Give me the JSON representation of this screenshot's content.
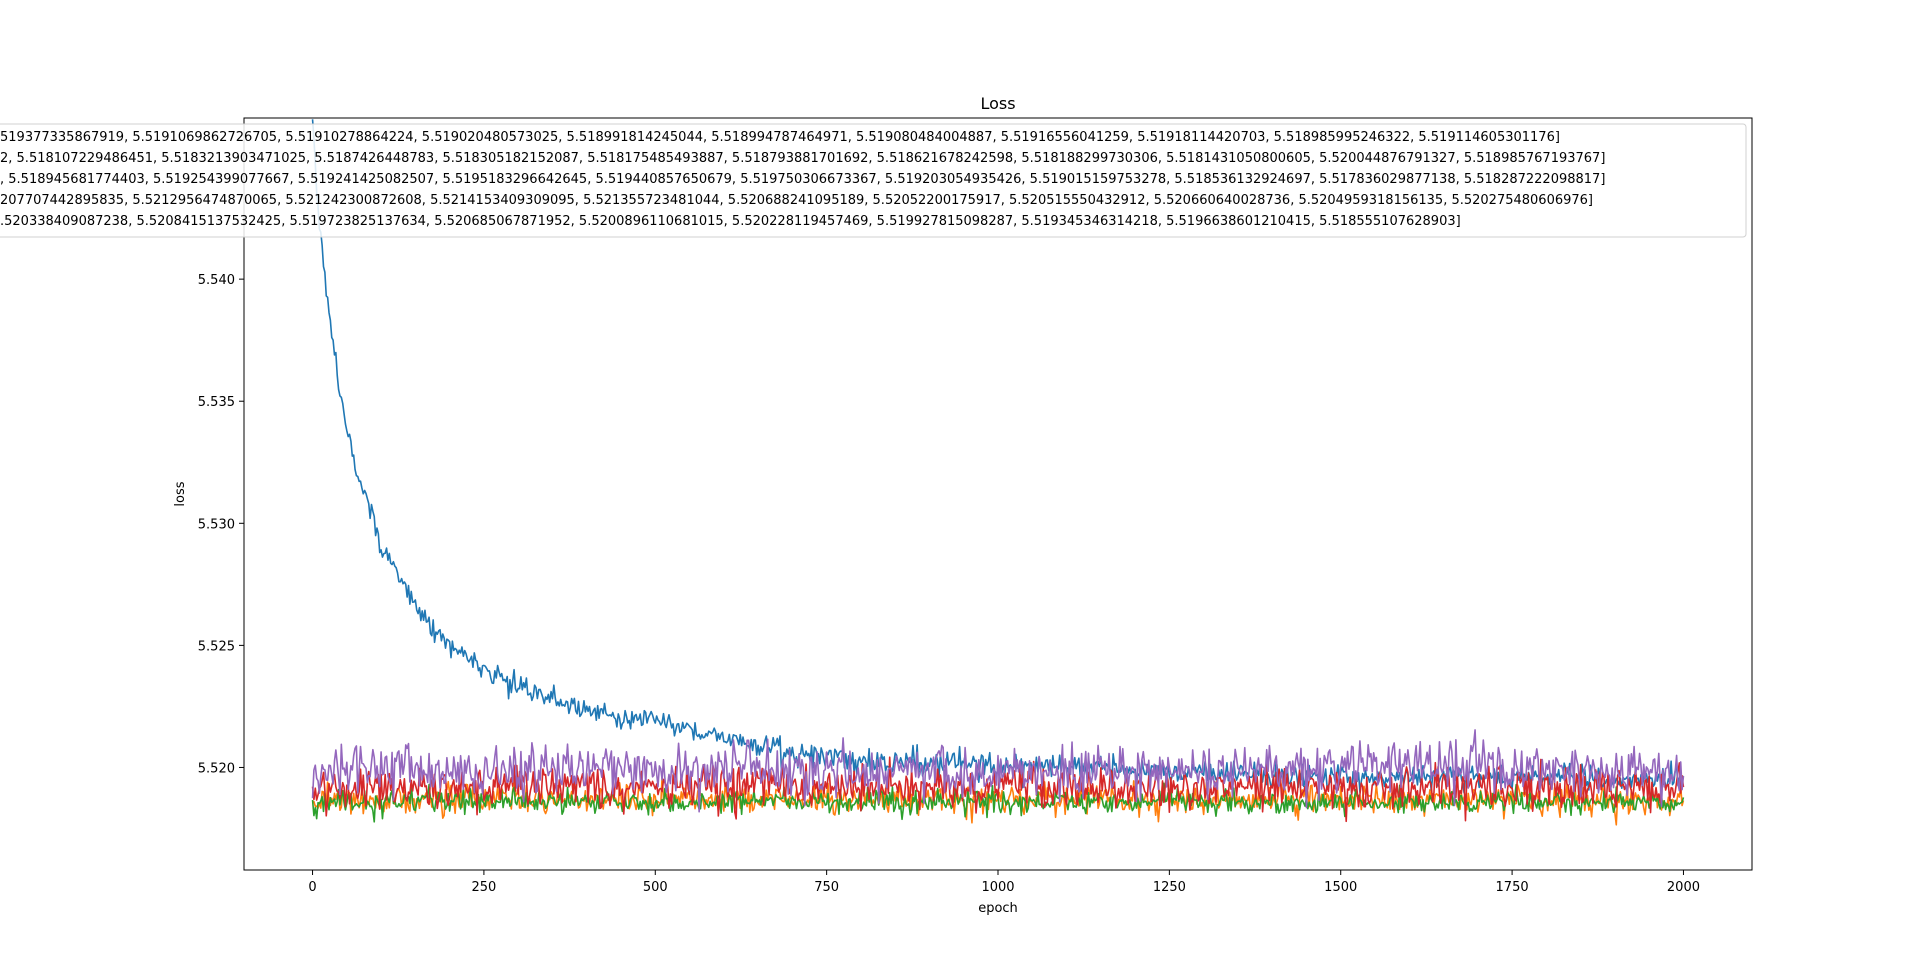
{
  "chart_data": {
    "type": "line",
    "title": "Loss",
    "xlabel": "epoch",
    "ylabel": "loss",
    "xlim": [
      -100,
      2100
    ],
    "ylim": [
      5.5158,
      5.5466
    ],
    "x_ticks": [
      0,
      250,
      500,
      750,
      1000,
      1250,
      1500,
      1750,
      2000
    ],
    "x_tick_labels": [
      "0",
      "250",
      "500",
      "750",
      "1000",
      "1250",
      "1500",
      "1750",
      "2000"
    ],
    "y_ticks": [
      5.52,
      5.525,
      5.53,
      5.535,
      5.54
    ],
    "y_tick_labels": [
      "5.520",
      "5.525",
      "5.530",
      "5.535",
      "5.540"
    ],
    "grid": false,
    "legend": {
      "placement": "top-right",
      "entries": [
        "519377335867919, 5.5191069862726705, 5.51910278864224, 5.519020480573025, 5.518991814245044, 5.518994787464971, 5.519080484004887, 5.51916556041259, 5.51918114420703, 5.518985995246322, 5.519114605301176]",
        "2, 5.518107229486451, 5.5183213903471025, 5.5187426448783, 5.518305182152087, 5.518175485493887, 5.518793881701692, 5.518621678242598, 5.518188299730306, 5.5181431050800605, 5.520044876791327, 5.518985767193767]",
        ", 5.518945681774403, 5.519254399077667, 5.519241425082507, 5.5195183296642645, 5.519440857650679, 5.519750306673367, 5.519203054935426, 5.519015159753278, 5.518536132924697, 5.517836029877138, 5.518287222098817]",
        "207707442895835, 5.5212956474870065, 5.521242300872608, 5.5214153409309095, 5.521355723481044, 5.520688241095189, 5.52052200175917, 5.520515550432912, 5.520660640028736, 5.5204959318156135, 5.520275480606976]",
        ".520338409087238, 5.5208415137532425, 5.519723825137634, 5.520685067871952, 5.5200896110681015, 5.520228119457469, 5.519927815098287, 5.519345346314218, 5.5196638601210415, 5.518555107628903]"
      ]
    },
    "series": [
      {
        "color": "#1f77b4",
        "x": [
          0,
          10,
          20,
          30,
          40,
          50,
          60,
          80,
          100,
          130,
          160,
          200,
          250,
          300,
          350,
          400,
          450,
          500,
          550,
          600,
          650,
          700,
          750,
          800,
          900,
          1000,
          1100,
          1200,
          1300,
          1400,
          1500,
          1600,
          1700,
          1800,
          1900,
          2000
        ],
        "values": [
          5.5466,
          5.5422,
          5.5394,
          5.5372,
          5.5354,
          5.534,
          5.5328,
          5.5308,
          5.5292,
          5.5275,
          5.5262,
          5.525,
          5.524,
          5.5233,
          5.5228,
          5.5224,
          5.5221,
          5.5219,
          5.5216,
          5.5212,
          5.5209,
          5.5206,
          5.5204,
          5.5203,
          5.5202,
          5.5201,
          5.52,
          5.5199,
          5.5198,
          5.5197,
          5.5197,
          5.5196,
          5.5196,
          5.5196,
          5.5195,
          5.5195
        ],
        "noise": 0.0004
      },
      {
        "color": "#ff7f0e",
        "x": [
          0,
          2000
        ],
        "values": [
          5.5187,
          5.5187
        ],
        "noise": 0.0005
      },
      {
        "color": "#2ca02c",
        "x": [
          0,
          2000
        ],
        "values": [
          5.5186,
          5.5186
        ],
        "noise": 0.0004
      },
      {
        "color": "#d62728",
        "x": [
          0,
          2000
        ],
        "values": [
          5.5192,
          5.5192
        ],
        "noise": 0.0007
      },
      {
        "color": "#9467bd",
        "x": [
          0,
          2000
        ],
        "values": [
          5.5199,
          5.5199
        ],
        "noise": 0.0009
      }
    ]
  }
}
